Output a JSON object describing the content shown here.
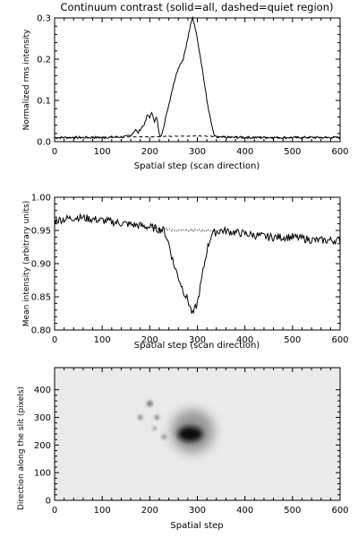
{
  "chart_data": [
    {
      "type": "line",
      "title": "Continuum contrast (solid=all, dashed=quiet region)",
      "xlabel": "Spatial step (scan direction)",
      "ylabel": "Normalized rms intensity",
      "xlim": [
        0,
        600
      ],
      "ylim": [
        0,
        0.3
      ],
      "xticks": [
        "0",
        "100",
        "200",
        "300",
        "400",
        "500",
        "600"
      ],
      "yticks": [
        "0.0",
        "0.1",
        "0.2",
        "0.3"
      ],
      "grid": false,
      "series": [
        {
          "style": "solid",
          "x": [
            0,
            100,
            150,
            160,
            170,
            175,
            180,
            190,
            195,
            200,
            205,
            210,
            215,
            218,
            222,
            225,
            230,
            240,
            250,
            260,
            270,
            280,
            285,
            290,
            295,
            300,
            310,
            320,
            330,
            335,
            340,
            400,
            500,
            600
          ],
          "y": [
            0.01,
            0.01,
            0.012,
            0.015,
            0.03,
            0.02,
            0.03,
            0.045,
            0.065,
            0.06,
            0.07,
            0.05,
            0.06,
            0.03,
            0.01,
            0.02,
            0.04,
            0.09,
            0.14,
            0.18,
            0.2,
            0.25,
            0.28,
            0.3,
            0.28,
            0.25,
            0.18,
            0.1,
            0.04,
            0.015,
            0.01,
            0.01,
            0.01,
            0.01
          ]
        },
        {
          "style": "dashed",
          "x": [
            0,
            100,
            200,
            300,
            400,
            500,
            600
          ],
          "y": [
            0.01,
            0.011,
            0.012,
            0.014,
            0.011,
            0.01,
            0.01
          ]
        }
      ]
    },
    {
      "type": "line",
      "title": "",
      "xlabel": "Spatial step (scan direction)",
      "ylabel": "Mean intensity (arbitrary units)",
      "xlim": [
        0,
        600
      ],
      "ylim": [
        0.8,
        1.0
      ],
      "xticks": [
        "0",
        "100",
        "200",
        "300",
        "400",
        "500",
        "600"
      ],
      "yticks": [
        "0.80",
        "0.85",
        "0.90",
        "0.95",
        "1.00"
      ],
      "grid": false,
      "series": [
        {
          "style": "solid",
          "x": [
            0,
            50,
            100,
            150,
            200,
            230,
            240,
            250,
            260,
            270,
            280,
            290,
            300,
            310,
            320,
            330,
            350,
            400,
            450,
            500,
            550,
            600
          ],
          "y": [
            0.965,
            0.97,
            0.965,
            0.96,
            0.955,
            0.95,
            0.93,
            0.9,
            0.88,
            0.86,
            0.845,
            0.823,
            0.84,
            0.88,
            0.92,
            0.945,
            0.95,
            0.945,
            0.94,
            0.94,
            0.935,
            0.935
          ]
        },
        {
          "style": "dotted",
          "x": [
            200,
            250,
            300,
            350
          ],
          "y": [
            0.955,
            0.95,
            0.95,
            0.95
          ]
        }
      ]
    },
    {
      "type": "heatmap",
      "title": "",
      "xlabel": "Spatial step",
      "ylabel": "Direction along the slit (pixels)",
      "xlim": [
        0,
        600
      ],
      "ylim": [
        0,
        480
      ],
      "xticks": [
        "0",
        "100",
        "200",
        "300",
        "400",
        "500",
        "600"
      ],
      "yticks": [
        "0",
        "100",
        "200",
        "300",
        "400"
      ],
      "colormap": "grayscale",
      "features": [
        {
          "x": 290,
          "y": 250,
          "radius": 45,
          "value": 0.25
        },
        {
          "x": 285,
          "y": 240,
          "radius": 20,
          "value": 0.05
        },
        {
          "x": 200,
          "y": 350,
          "radius": 6,
          "value": 0.45
        },
        {
          "x": 180,
          "y": 300,
          "radius": 5,
          "value": 0.5
        },
        {
          "x": 215,
          "y": 300,
          "radius": 5,
          "value": 0.5
        },
        {
          "x": 210,
          "y": 260,
          "radius": 4,
          "value": 0.55
        },
        {
          "x": 230,
          "y": 230,
          "radius": 5,
          "value": 0.55
        }
      ]
    }
  ]
}
